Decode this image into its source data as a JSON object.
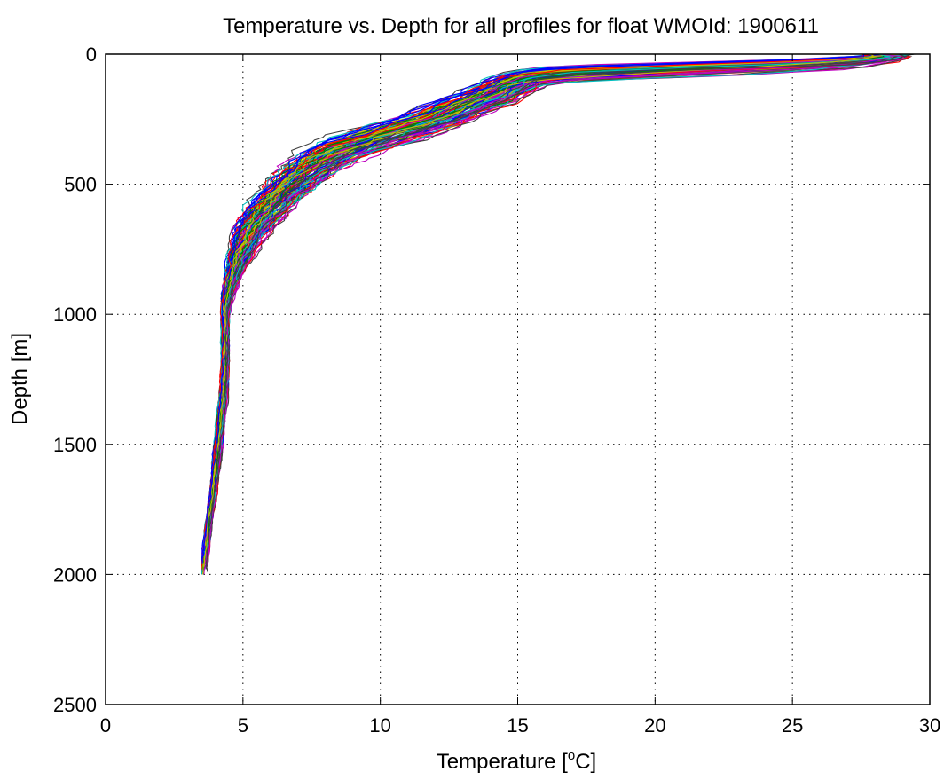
{
  "chart_data": {
    "type": "line",
    "title": "Temperature vs. Depth for all profiles for float WMOId: 1900611",
    "xlabel": "Temperature [",
    "xlabel_sup": "o",
    "xlabel_end": "C]",
    "ylabel": "Depth [m]",
    "xlim": [
      0,
      30
    ],
    "ylim": [
      0,
      2500
    ],
    "y_reversed": true,
    "x_ticks": [
      0,
      5,
      10,
      15,
      20,
      25,
      30
    ],
    "y_ticks": [
      0,
      500,
      1000,
      1500,
      2000,
      2500
    ],
    "x_tick_labels": [
      "0",
      "5",
      "10",
      "15",
      "20",
      "25",
      "30"
    ],
    "y_tick_labels": [
      "0",
      "500",
      "1000",
      "1500",
      "2000",
      "2500"
    ],
    "grid": "dotted",
    "legend": "none",
    "profile_count_estimate": 120,
    "series_colors": [
      "#0000ff",
      "#008000",
      "#ff0000",
      "#00bfbf",
      "#bf00bf",
      "#bfbf00",
      "#404040"
    ],
    "mean_profile": {
      "depth": [
        0,
        20,
        40,
        60,
        80,
        100,
        130,
        160,
        200,
        250,
        300,
        350,
        400,
        450,
        500,
        550,
        600,
        650,
        700,
        750,
        800,
        850,
        900,
        950,
        1000,
        1100,
        1200,
        1300,
        1400,
        1500,
        1600,
        1700,
        1800,
        1900,
        2000
      ],
      "temperature": [
        28.8,
        27.5,
        24.0,
        19.0,
        16.0,
        15.0,
        14.5,
        14.0,
        13.0,
        12.0,
        10.5,
        9.0,
        8.0,
        7.3,
        6.8,
        6.3,
        5.9,
        5.5,
        5.2,
        5.0,
        4.8,
        4.65,
        4.5,
        4.4,
        4.35,
        4.35,
        4.35,
        4.3,
        4.2,
        4.1,
        4.0,
        3.9,
        3.75,
        3.65,
        3.55
      ]
    },
    "spread": {
      "depth": [
        0,
        20,
        40,
        60,
        80,
        100,
        130,
        160,
        200,
        250,
        300,
        350,
        400,
        450,
        500,
        550,
        600,
        650,
        700,
        750,
        800,
        850,
        900,
        950,
        1000,
        1100,
        1200,
        1300,
        1400,
        1500,
        1600,
        1700,
        1800,
        1900,
        2000
      ],
      "temperature_halfwidth": [
        0.6,
        1.5,
        3.5,
        3.5,
        1.5,
        1.0,
        1.2,
        1.2,
        1.2,
        1.3,
        1.4,
        1.3,
        1.1,
        1.0,
        0.9,
        0.8,
        0.8,
        0.7,
        0.6,
        0.5,
        0.4,
        0.3,
        0.25,
        0.2,
        0.15,
        0.15,
        0.15,
        0.15,
        0.15,
        0.15,
        0.15,
        0.12,
        0.12,
        0.12,
        0.12
      ]
    }
  }
}
